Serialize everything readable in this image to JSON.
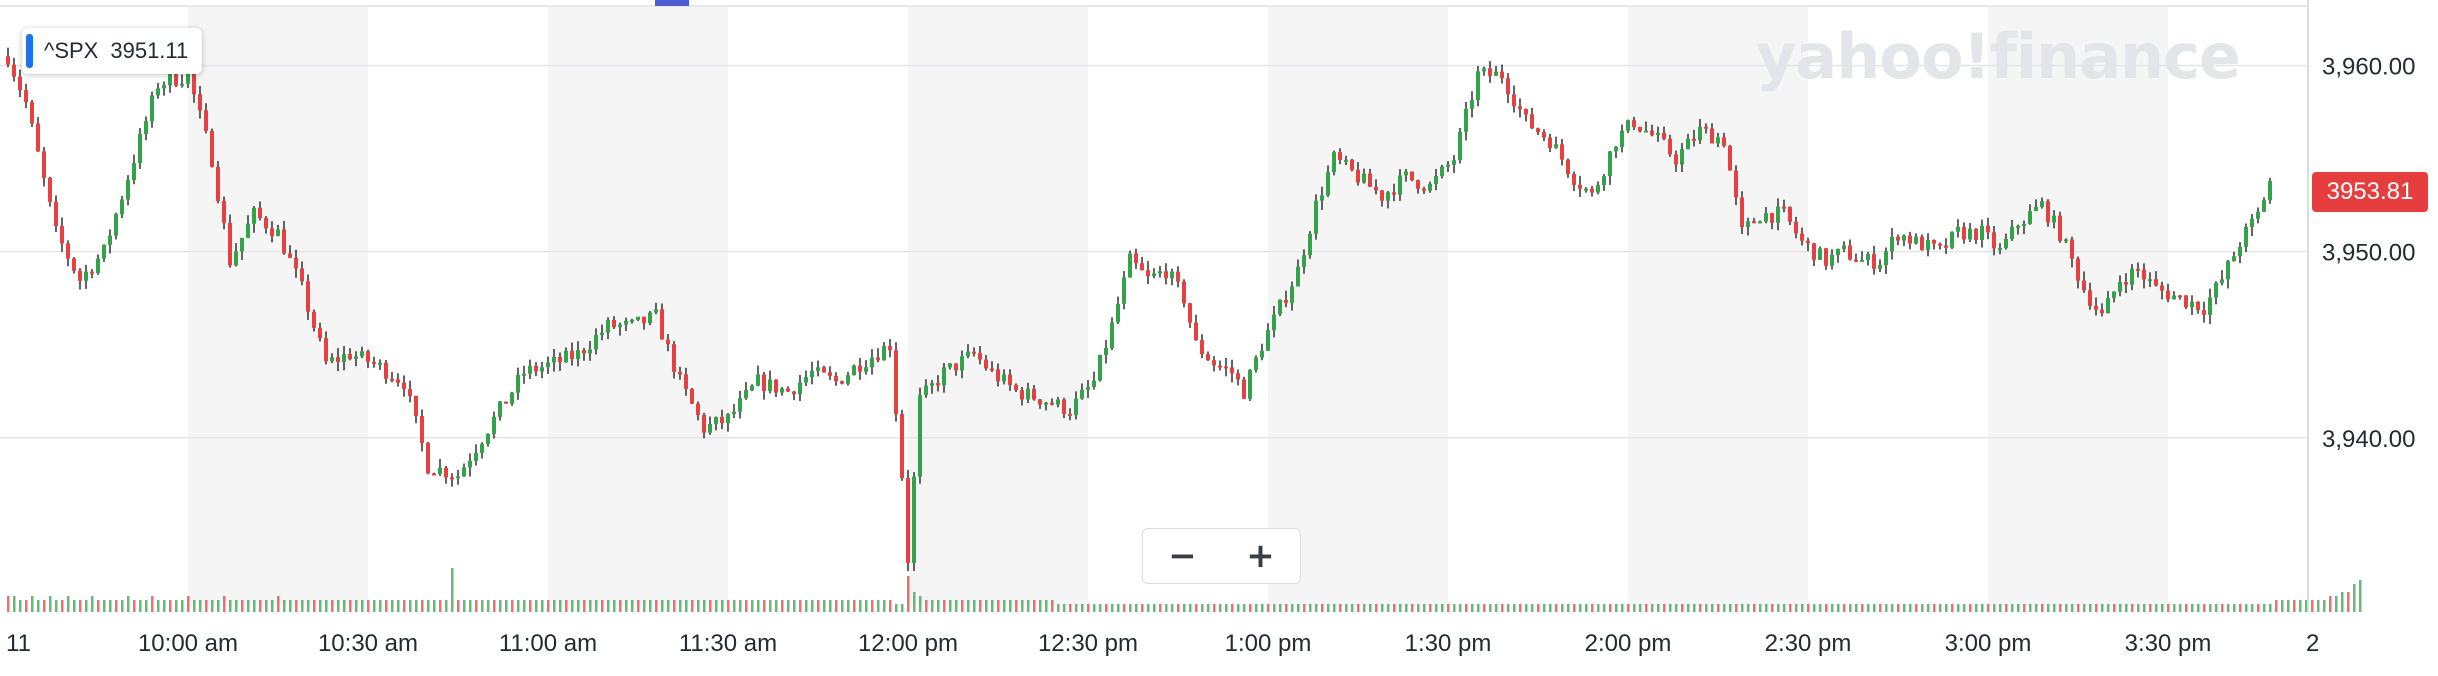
{
  "brand": {
    "logo_text": "yahoo!finance"
  },
  "tooltip": {
    "symbol": "^SPX",
    "value": "3951.11"
  },
  "price_tag": "3953.81",
  "zoom": {
    "minus": "−",
    "plus": "+"
  },
  "colors": {
    "up": "#33a34a",
    "down": "#e64040",
    "band": "#f5f5f5",
    "tag": "#e63e3e",
    "tip_accent": "#1e73e8"
  },
  "chart_data": {
    "type": "candlestick",
    "title": "",
    "xlabel": "",
    "ylabel": "",
    "ylim": [
      3931.5,
      3963.2
    ],
    "y_ticks": [
      {
        "value": 3960,
        "label": "3,960.00"
      },
      {
        "value": 3950,
        "label": "3,950.00"
      },
      {
        "value": 3940,
        "label": "3,940.00"
      }
    ],
    "x_ticks": [
      "11",
      "10:00 am",
      "10:30 am",
      "11:00 am",
      "11:30 am",
      "12:00 pm",
      "12:30 pm",
      "1:00 pm",
      "1:30 pm",
      "2:00 pm",
      "2:30 pm",
      "3:00 pm",
      "3:30 pm",
      "2"
    ],
    "x_tick_times": [
      -5,
      30,
      60,
      90,
      120,
      150,
      180,
      210,
      240,
      270,
      300,
      330,
      360,
      387
    ],
    "start_time": "9:30 am",
    "end_time": "3:55 pm",
    "last_price": 3953.81,
    "grid": true,
    "anchors": [
      [
        0,
        3960.5
      ],
      [
        3,
        3958
      ],
      [
        8,
        3951
      ],
      [
        12,
        3948.5
      ],
      [
        16,
        3950
      ],
      [
        20,
        3954
      ],
      [
        25,
        3959
      ],
      [
        30,
        3959.5
      ],
      [
        34,
        3955
      ],
      [
        37,
        3949.5
      ],
      [
        41,
        3952
      ],
      [
        45,
        3951
      ],
      [
        49,
        3948
      ],
      [
        53,
        3944
      ],
      [
        57,
        3944.5
      ],
      [
        61,
        3944
      ],
      [
        66,
        3943
      ],
      [
        70,
        3938.5
      ],
      [
        75,
        3938
      ],
      [
        79,
        3940
      ],
      [
        83,
        3942
      ],
      [
        86,
        3943.5
      ],
      [
        91,
        3944
      ],
      [
        95,
        3944.5
      ],
      [
        100,
        3946
      ],
      [
        104,
        3946
      ],
      [
        108,
        3946.5
      ],
      [
        112,
        3943
      ],
      [
        116,
        3940.5
      ],
      [
        120,
        3941
      ],
      [
        125,
        3943
      ],
      [
        130,
        3942.5
      ],
      [
        134,
        3943.5
      ],
      [
        138,
        3943
      ],
      [
        142,
        3944
      ],
      [
        147,
        3945
      ],
      [
        149,
        3938
      ],
      [
        150,
        3933.5
      ],
      [
        152,
        3942
      ],
      [
        156,
        3943.5
      ],
      [
        161,
        3944.5
      ],
      [
        164,
        3943.5
      ],
      [
        168,
        3942.5
      ],
      [
        173,
        3942
      ],
      [
        177,
        3941.5
      ],
      [
        181,
        3943
      ],
      [
        184,
        3946
      ],
      [
        187,
        3949.5
      ],
      [
        190,
        3948.5
      ],
      [
        193,
        3949
      ],
      [
        196,
        3947.5
      ],
      [
        198,
        3945
      ],
      [
        201,
        3944
      ],
      [
        204,
        3943.5
      ],
      [
        206,
        3942.5
      ],
      [
        209,
        3945
      ],
      [
        212,
        3947
      ],
      [
        215,
        3949
      ],
      [
        218,
        3952.5
      ],
      [
        221,
        3955
      ],
      [
        225,
        3954
      ],
      [
        229,
        3953
      ],
      [
        233,
        3954
      ],
      [
        237,
        3953.5
      ],
      [
        241,
        3955
      ],
      [
        245,
        3959.5
      ],
      [
        249,
        3959.5
      ],
      [
        253,
        3957
      ],
      [
        257,
        3956
      ],
      [
        261,
        3954
      ],
      [
        264,
        3953
      ],
      [
        268,
        3956
      ],
      [
        271,
        3957
      ],
      [
        275,
        3956
      ],
      [
        278,
        3955
      ],
      [
        282,
        3956.5
      ],
      [
        286,
        3956
      ],
      [
        289,
        3951
      ],
      [
        292,
        3952
      ],
      [
        296,
        3952
      ],
      [
        299,
        3950.5
      ],
      [
        303,
        3949.5
      ],
      [
        306,
        3950
      ],
      [
        309,
        3949.5
      ],
      [
        312,
        3949.5
      ],
      [
        315,
        3951
      ],
      [
        318,
        3950.5
      ],
      [
        322,
        3950
      ],
      [
        325,
        3951
      ],
      [
        329,
        3951
      ],
      [
        332,
        3950
      ],
      [
        335,
        3951.5
      ],
      [
        339,
        3952.5
      ],
      [
        342,
        3951
      ],
      [
        346,
        3948
      ],
      [
        349,
        3946.5
      ],
      [
        352,
        3948.5
      ],
      [
        355,
        3949
      ],
      [
        358,
        3948
      ],
      [
        362,
        3947.5
      ],
      [
        366,
        3947
      ],
      [
        369,
        3948.5
      ],
      [
        372,
        3950.5
      ],
      [
        375,
        3952
      ],
      [
        377,
        3953.8
      ]
    ],
    "volume_levels": [
      4,
      4,
      3,
      3,
      4,
      3,
      3,
      4,
      3,
      3,
      4,
      3,
      3,
      3,
      4,
      3,
      3,
      3,
      3,
      3,
      4,
      3,
      3,
      3,
      4,
      3,
      3,
      3,
      3,
      3,
      4,
      3,
      3,
      3,
      3,
      3,
      4,
      3,
      3,
      3,
      3,
      3,
      3,
      3,
      3,
      4,
      3,
      3,
      3,
      3,
      3,
      3,
      3,
      3,
      3,
      3,
      3,
      3,
      3,
      3,
      3,
      3,
      3,
      3,
      3,
      3,
      3,
      3,
      3,
      3,
      3,
      3,
      3,
      3,
      11,
      3,
      3,
      3,
      3,
      3,
      3,
      3,
      3,
      3,
      3,
      3,
      3,
      3,
      3,
      3,
      3,
      3,
      3,
      3,
      3,
      3,
      3,
      3,
      3,
      3,
      3,
      3,
      3,
      3,
      3,
      3,
      3,
      3,
      3,
      3,
      3,
      3,
      3,
      3,
      3,
      3,
      3,
      3,
      3,
      3,
      3,
      3,
      3,
      3,
      3,
      3,
      3,
      3,
      3,
      3,
      3,
      3,
      3,
      3,
      3,
      3,
      3,
      3,
      3,
      3,
      3,
      3,
      3,
      3,
      3,
      3,
      3,
      3,
      2,
      2,
      9,
      5,
      4,
      3,
      3,
      3,
      3,
      3,
      3,
      3,
      3,
      3,
      3,
      3,
      3,
      3,
      3,
      3,
      3,
      3,
      3,
      3,
      3,
      3,
      3,
      2,
      2,
      2,
      2,
      2,
      2,
      2,
      2,
      2,
      2,
      2,
      2,
      2,
      2,
      2,
      2,
      2,
      2,
      2,
      2,
      2,
      2,
      2,
      2,
      2,
      2,
      2,
      2,
      2,
      2,
      2,
      2,
      2,
      2,
      2,
      2,
      2,
      2,
      2,
      2,
      2,
      2,
      2,
      2,
      2,
      2,
      2,
      2,
      2,
      2,
      2,
      2,
      2,
      2,
      2,
      2,
      2,
      2,
      2,
      2,
      2,
      2,
      2,
      2,
      2,
      2,
      2,
      2,
      2,
      2,
      2,
      2,
      2,
      2,
      2,
      2,
      2,
      2,
      2,
      2,
      2,
      2,
      2,
      2,
      2,
      2,
      2,
      2,
      2,
      2,
      2,
      2,
      2,
      2,
      2,
      2,
      2,
      2,
      2,
      2,
      2,
      2,
      2,
      2,
      2,
      2,
      2,
      2,
      2,
      2,
      2,
      2,
      2,
      2,
      2,
      2,
      2,
      2,
      2,
      2,
      2,
      2,
      2,
      2,
      2,
      2,
      2,
      2,
      2,
      2,
      2,
      2,
      2,
      2,
      2,
      2,
      2,
      2,
      2,
      2,
      2,
      2,
      2,
      2,
      2,
      2,
      2,
      2,
      2,
      2,
      2,
      2,
      2,
      2,
      2,
      2,
      2,
      2,
      2,
      2,
      2,
      2,
      2,
      2,
      2,
      2,
      2,
      2,
      2,
      2,
      2,
      2,
      2,
      2,
      2,
      2,
      2,
      2,
      2,
      2,
      2,
      2,
      2,
      2,
      2,
      2,
      2,
      2,
      2,
      2,
      2,
      2,
      2,
      2,
      2,
      2,
      2,
      2,
      2,
      2,
      2,
      2,
      2,
      3,
      3,
      3,
      3,
      3,
      3,
      3,
      3,
      3,
      4,
      4,
      5,
      5,
      7,
      8
    ]
  }
}
